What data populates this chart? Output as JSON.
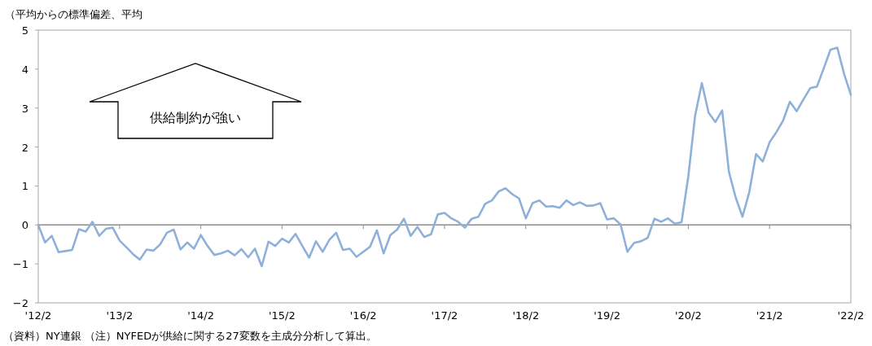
{
  "chart_data": {
    "type": "line",
    "ylabel": "（平均からの標準偏差、平均",
    "annotations": [
      "供給制約が強い",
      "（資料）NY連銀 （注）NYFEDが供給に関する27変数を主成分分析して算出。"
    ],
    "color": "#8eb0d9",
    "x": [
      "2012-02",
      "2012-03",
      "2012-04",
      "2012-05",
      "2012-06",
      "2012-07",
      "2012-08",
      "2012-09",
      "2012-10",
      "2012-11",
      "2012-12",
      "2013-01",
      "2013-02",
      "2013-03",
      "2013-04",
      "2013-05",
      "2013-06",
      "2013-07",
      "2013-08",
      "2013-09",
      "2013-10",
      "2013-11",
      "2013-12",
      "2014-01",
      "2014-02",
      "2014-03",
      "2014-04",
      "2014-05",
      "2014-06",
      "2014-07",
      "2014-08",
      "2014-09",
      "2014-10",
      "2014-11",
      "2014-12",
      "2015-01",
      "2015-02",
      "2015-03",
      "2015-04",
      "2015-05",
      "2015-06",
      "2015-07",
      "2015-08",
      "2015-09",
      "2015-10",
      "2015-11",
      "2015-12",
      "2016-01",
      "2016-02",
      "2016-03",
      "2016-04",
      "2016-05",
      "2016-06",
      "2016-07",
      "2016-08",
      "2016-09",
      "2016-10",
      "2016-11",
      "2016-12",
      "2017-01",
      "2017-02",
      "2017-03",
      "2017-04",
      "2017-05",
      "2017-06",
      "2017-07",
      "2017-08",
      "2017-09",
      "2017-10",
      "2017-11",
      "2017-12",
      "2018-01",
      "2018-02",
      "2018-03",
      "2018-04",
      "2018-05",
      "2018-06",
      "2018-07",
      "2018-08",
      "2018-09",
      "2018-10",
      "2018-11",
      "2018-12",
      "2019-01",
      "2019-02",
      "2019-03",
      "2019-04",
      "2019-05",
      "2019-06",
      "2019-07",
      "2019-08",
      "2019-09",
      "2019-10",
      "2019-11",
      "2019-12",
      "2020-01",
      "2020-02",
      "2020-03",
      "2020-04",
      "2020-05",
      "2020-06",
      "2020-07",
      "2020-08",
      "2020-09",
      "2020-10",
      "2020-11",
      "2020-12",
      "2021-01",
      "2021-02",
      "2021-03",
      "2021-04",
      "2021-05",
      "2021-06",
      "2021-07",
      "2021-08",
      "2021-09",
      "2021-10",
      "2021-11",
      "2021-12",
      "2022-01",
      "2022-02"
    ],
    "values": [
      0,
      -0.45,
      -0.28,
      -0.7,
      -0.67,
      -0.64,
      -0.11,
      -0.17,
      0.08,
      -0.28,
      -0.1,
      -0.07,
      -0.4,
      -0.57,
      -0.75,
      -0.89,
      -0.63,
      -0.66,
      -0.5,
      -0.2,
      -0.12,
      -0.63,
      -0.45,
      -0.61,
      -0.26,
      -0.54,
      -0.77,
      -0.73,
      -0.66,
      -0.78,
      -0.62,
      -0.83,
      -0.61,
      -1.06,
      -0.43,
      -0.54,
      -0.35,
      -0.45,
      -0.23,
      -0.54,
      -0.84,
      -0.42,
      -0.69,
      -0.38,
      -0.2,
      -0.64,
      -0.61,
      -0.82,
      -0.69,
      -0.56,
      -0.14,
      -0.73,
      -0.26,
      -0.12,
      0.16,
      -0.28,
      -0.05,
      -0.31,
      -0.24,
      0.27,
      0.31,
      0.17,
      0.08,
      -0.07,
      0.16,
      0.21,
      0.54,
      0.63,
      0.86,
      0.94,
      0.79,
      0.68,
      0.17,
      0.56,
      0.63,
      0.47,
      0.48,
      0.44,
      0.63,
      0.51,
      0.58,
      0.49,
      0.5,
      0.56,
      0.14,
      0.17,
      0.01,
      -0.69,
      -0.46,
      -0.42,
      -0.33,
      0.16,
      0.08,
      0.17,
      0.03,
      0.07,
      1.25,
      2.8,
      3.64,
      2.88,
      2.64,
      2.94,
      1.36,
      0.7,
      0.21,
      0.84,
      1.82,
      1.63,
      2.12,
      2.38,
      2.68,
      3.16,
      2.92,
      3.22,
      3.51,
      3.55,
      4.02,
      4.5,
      4.55,
      3.88,
      3.34
    ],
    "xlim": [
      "2012-02",
      "2022-02"
    ],
    "ylim": [
      -2,
      5
    ],
    "xticks": [
      {
        "value": "2012-02",
        "label": "'12/2"
      },
      {
        "value": "2013-02",
        "label": "'13/2"
      },
      {
        "value": "2014-02",
        "label": "'14/2"
      },
      {
        "value": "2015-02",
        "label": "'15/2"
      },
      {
        "value": "2016-02",
        "label": "'16/2"
      },
      {
        "value": "2017-02",
        "label": "'17/2"
      },
      {
        "value": "2018-02",
        "label": "'18/2"
      },
      {
        "value": "2019-02",
        "label": "'19/2"
      },
      {
        "value": "2020-02",
        "label": "'20/2"
      },
      {
        "value": "2021-02",
        "label": "'21/2"
      },
      {
        "value": "2022-02",
        "label": "'22/2"
      }
    ],
    "yticks": [
      -2,
      -1,
      0,
      1,
      2,
      3,
      4,
      5
    ]
  }
}
